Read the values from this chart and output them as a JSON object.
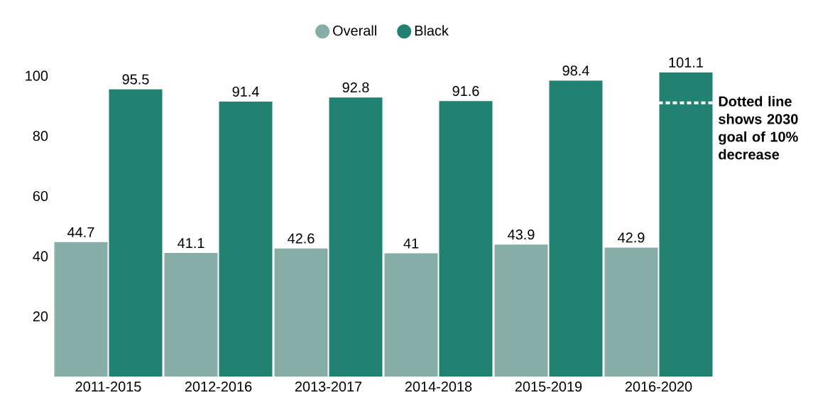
{
  "chart_data": {
    "type": "bar",
    "categories": [
      "2011-2015",
      "2012-2016",
      "2013-2017",
      "2014-2018",
      "2015-2019",
      "2016-2020"
    ],
    "series": [
      {
        "name": "Overall",
        "color": "#86ada6",
        "values": [
          44.7,
          41.1,
          42.6,
          41,
          43.9,
          42.9
        ]
      },
      {
        "name": "Black",
        "color": "#218272",
        "values": [
          95.5,
          91.4,
          92.8,
          91.6,
          98.4,
          101.1
        ]
      }
    ],
    "ylim": [
      0,
      101.1
    ],
    "yticks": [
      20,
      40,
      60,
      80,
      100
    ],
    "grid": false,
    "legend": "top",
    "data_labels": true,
    "ref_lines": [
      {
        "axis": "y",
        "value": 91,
        "label": "**Dotted line shows 2030 goal of 10% decrease**",
        "color": "#ffffff",
        "line_style": "dotted"
      }
    ]
  }
}
